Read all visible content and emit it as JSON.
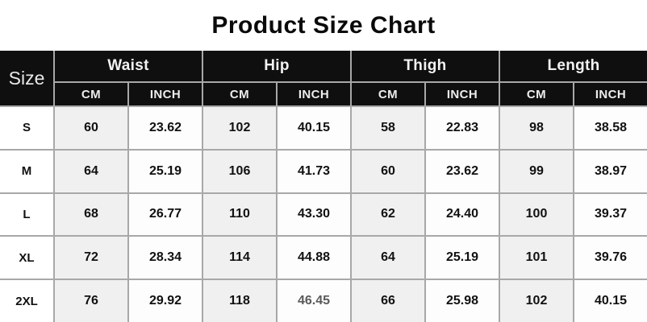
{
  "title": "Product Size Chart",
  "table": {
    "size_header": "Size",
    "groups": [
      {
        "label": "Waist"
      },
      {
        "label": "Hip"
      },
      {
        "label": "Thigh"
      },
      {
        "label": "Length"
      }
    ],
    "units": [
      "CM",
      "INCH"
    ],
    "rows": [
      {
        "size": "S",
        "values": [
          "60",
          "23.62",
          "102",
          "40.15",
          "58",
          "22.83",
          "98",
          "38.58"
        ]
      },
      {
        "size": "M",
        "values": [
          "64",
          "25.19",
          "106",
          "41.73",
          "60",
          "23.62",
          "99",
          "38.97"
        ]
      },
      {
        "size": "L",
        "values": [
          "68",
          "26.77",
          "110",
          "43.30",
          "62",
          "24.40",
          "100",
          "39.37"
        ]
      },
      {
        "size": "XL",
        "values": [
          "72",
          "28.34",
          "114",
          "44.88",
          "64",
          "25.19",
          "101",
          "39.76"
        ]
      },
      {
        "size": "2XL",
        "values": [
          "76",
          "29.92",
          "118",
          "46.45",
          "66",
          "25.98",
          "102",
          "40.15"
        ]
      }
    ]
  },
  "colors": {
    "header_bg": "#0f0f0f",
    "header_text": "#f2f2f2",
    "grid_line": "#a8a8a8",
    "cm_column_bg": "#f0f0f0",
    "inch_column_bg": "#fdfdfd",
    "body_text": "#111111",
    "muted_value_text": "#5a5a5a",
    "title_text": "#0a0a0a"
  }
}
